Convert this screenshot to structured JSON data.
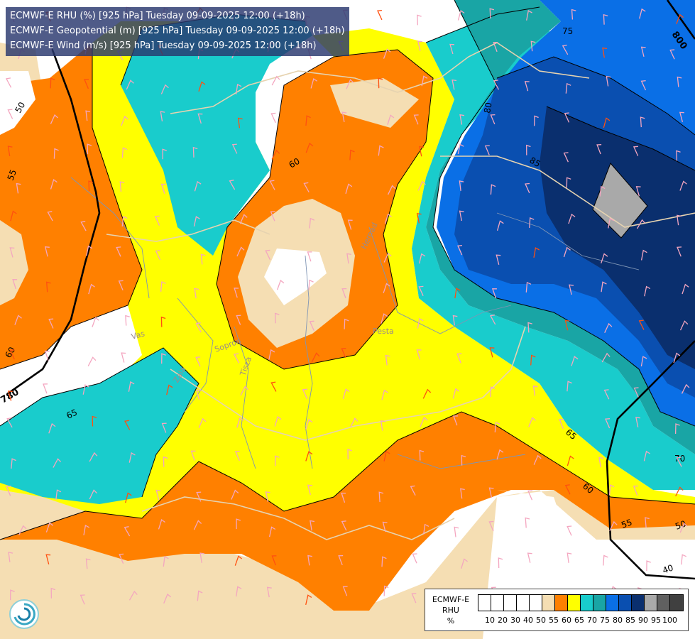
{
  "title_lines": [
    "ECMWF-E RHU (%) [925 hPa] Tuesday 09-09-2025 12:00 (+18h)",
    "ECMWF-E Geopotential (m) [925 hPa] Tuesday 09-09-2025 12:00 (+18h)",
    "ECMWF-E Wind (m/s) [925 hPa] Tuesday 09-09-2025 12:00 (+18h)"
  ],
  "legend": {
    "title_line1": "ECMWF-E",
    "title_line2": "RHU",
    "unit": "%",
    "ticks": [
      "10",
      "20",
      "30",
      "40",
      "50",
      "55",
      "60",
      "65",
      "70",
      "75",
      "80",
      "85",
      "90",
      "95",
      "100"
    ],
    "colors": [
      "#ffffff",
      "#ffffff",
      "#ffffff",
      "#ffffff",
      "#ffffff",
      "#f5deb3",
      "#ff8000",
      "#ffff00",
      "#19cccc",
      "#19a5a5",
      "#0a6fe6",
      "#0a4fb0",
      "#0a2f6e",
      "#a9a9a9",
      "#606060",
      "#404040"
    ]
  },
  "contour_labels": {
    "rhu": [
      "50",
      "55",
      "60",
      "60",
      "65",
      "65",
      "60",
      "55",
      "50",
      "40",
      "70",
      "75",
      "80",
      "85"
    ],
    "geopotential": [
      "780",
      "800"
    ]
  },
  "river_labels": [
    "Vas",
    "Sopron",
    "Tisza",
    "Zala",
    "Hernad",
    "Pesta"
  ],
  "palette": {
    "white": "#ffffff",
    "wheat": "#f5deb3",
    "orange": "#ff8000",
    "yellow": "#ffff00",
    "cyan": "#19cccc",
    "teal": "#19a5a5",
    "blue": "#0a6fe6",
    "midblue": "#0a4fb0",
    "navy": "#0a2f6e",
    "grey": "#a9a9a9"
  }
}
